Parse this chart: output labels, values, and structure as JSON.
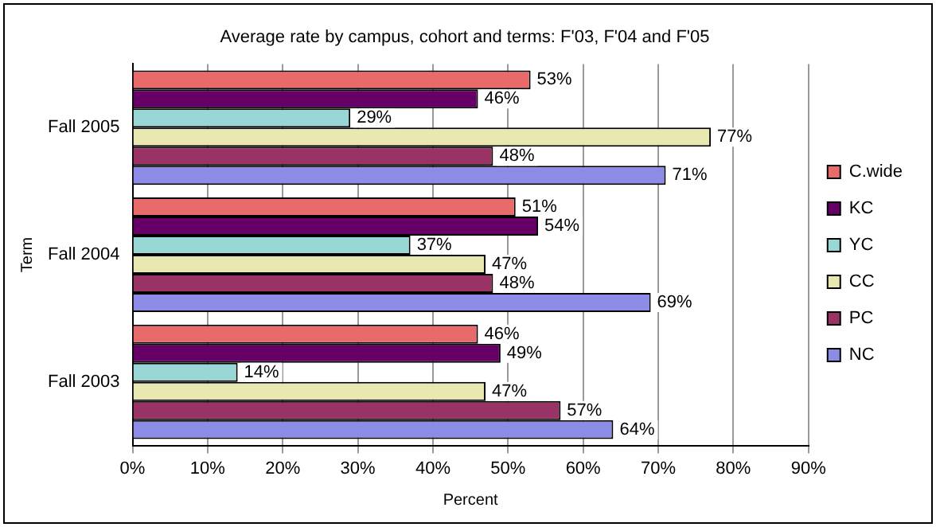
{
  "chart_data": {
    "type": "bar",
    "orientation": "horizontal",
    "title": "Average rate by campus, cohort and terms: F'03, F'04 and F'05",
    "xlabel": "Percent",
    "ylabel": "Term",
    "categories": [
      "Fall 2005",
      "Fall 2004",
      "Fall 2003"
    ],
    "series": [
      {
        "name": "C.wide",
        "color": "#e86a6a",
        "values": [
          53,
          51,
          46
        ],
        "value_labels": [
          "53%",
          "51%",
          "46%"
        ]
      },
      {
        "name": "KC",
        "color": "#660066",
        "values": [
          46,
          54,
          49
        ],
        "value_labels": [
          "46%",
          "54%",
          "49%"
        ]
      },
      {
        "name": "YC",
        "color": "#99d6d6",
        "values": [
          29,
          37,
          14
        ],
        "value_labels": [
          "29%",
          "37%",
          "14%"
        ]
      },
      {
        "name": "CC",
        "color": "#e8e8b0",
        "values": [
          77,
          47,
          47
        ],
        "value_labels": [
          "77%",
          "47%",
          "47%"
        ]
      },
      {
        "name": "PC",
        "color": "#993366",
        "values": [
          48,
          48,
          57
        ],
        "value_labels": [
          "48%",
          "48%",
          "57%"
        ]
      },
      {
        "name": "NC",
        "color": "#8c8ce6",
        "values": [
          71,
          69,
          64
        ],
        "value_labels": [
          "71%",
          "69%",
          "64%"
        ]
      }
    ],
    "xlim": [
      0,
      90
    ],
    "xticks": [
      {
        "value": 0,
        "label": "0%"
      },
      {
        "value": 10,
        "label": "10%"
      },
      {
        "value": 20,
        "label": "20%"
      },
      {
        "value": 30,
        "label": "30%"
      },
      {
        "value": 40,
        "label": "40%"
      },
      {
        "value": 50,
        "label": "50%"
      },
      {
        "value": 60,
        "label": "60%"
      },
      {
        "value": 70,
        "label": "70%"
      },
      {
        "value": 80,
        "label": "80%"
      },
      {
        "value": 90,
        "label": "90%"
      }
    ],
    "grid": "x",
    "legend": "right"
  }
}
